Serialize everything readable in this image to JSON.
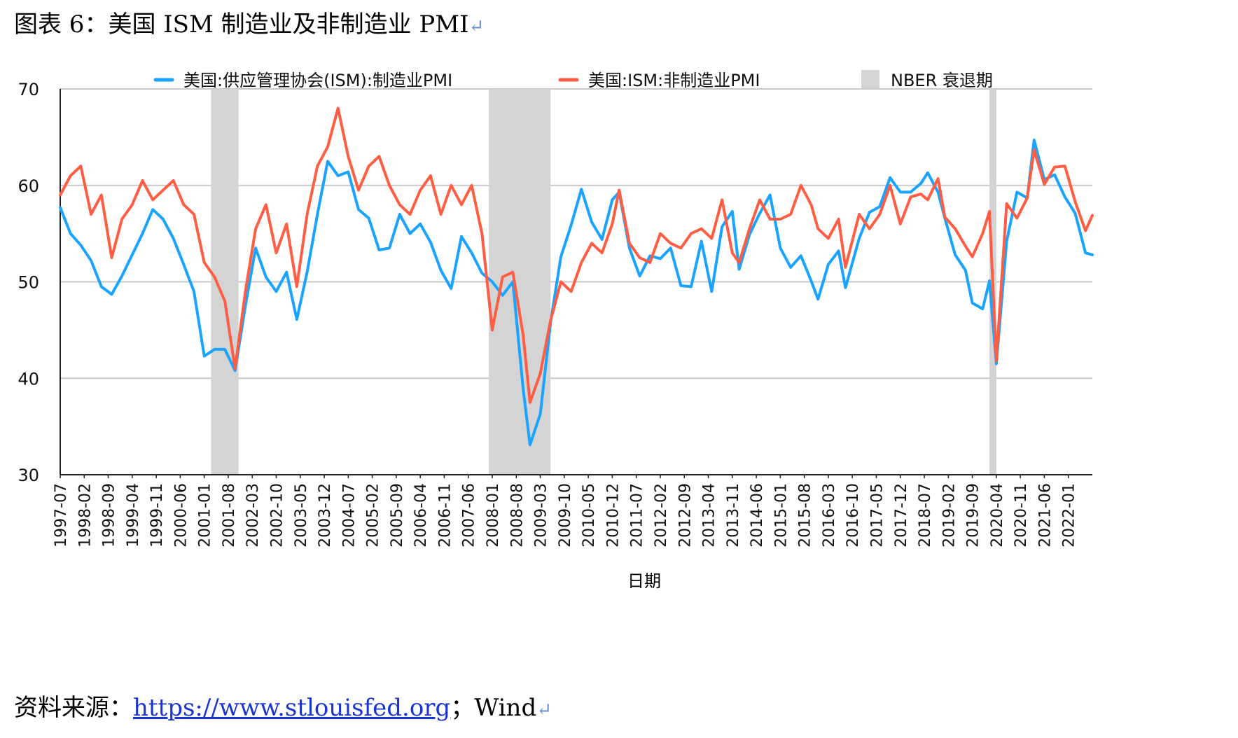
{
  "figure": {
    "title": "图表 6：美国 ISM 制造业及非制造业 PMI",
    "return_mark": "↵"
  },
  "source": {
    "label": "资料来源：",
    "link": "https://www.stlouisfed.org",
    "separator": "；",
    "tail": "Wind"
  },
  "colors": {
    "manufacturing": "#1aa3ff",
    "non_manufacturing": "#ff5e45",
    "recession": "#d4d4d4",
    "grid": "#c8c8c8",
    "axis": "#222222"
  },
  "chart_data": {
    "type": "line",
    "title": "",
    "xlabel": "日期",
    "ylabel": "",
    "ylim": [
      30,
      70
    ],
    "yticks": [
      30,
      40,
      50,
      60,
      70
    ],
    "x_start": "1997-07",
    "x_end": "2022-08",
    "categories": [
      "1997-07",
      "1998-02",
      "1998-09",
      "1999-04",
      "1999-11",
      "2000-06",
      "2001-01",
      "2001-08",
      "2002-03",
      "2002-10",
      "2003-05",
      "2003-12",
      "2004-07",
      "2005-02",
      "2005-09",
      "2006-04",
      "2006-11",
      "2007-06",
      "2008-01",
      "2008-08",
      "2009-03",
      "2009-10",
      "2010-05",
      "2010-12",
      "2011-07",
      "2012-02",
      "2012-09",
      "2013-04",
      "2013-11",
      "2014-06",
      "2015-01",
      "2015-08",
      "2016-03",
      "2016-10",
      "2017-05",
      "2017-12",
      "2018-07",
      "2019-02",
      "2019-09",
      "2020-04",
      "2020-11",
      "2021-06",
      "2022-01"
    ],
    "legend_position": "top",
    "series": [
      {
        "name": "美国:供应管理协会(ISM):制造业PMI",
        "color": "#1aa3ff",
        "points": [
          [
            "1997-07",
            57.7
          ],
          [
            "1997-10",
            55.0
          ],
          [
            "1998-01",
            53.8
          ],
          [
            "1998-04",
            52.2
          ],
          [
            "1998-07",
            49.5
          ],
          [
            "1998-10",
            48.7
          ],
          [
            "1999-01",
            50.6
          ],
          [
            "1999-04",
            52.8
          ],
          [
            "1999-07",
            55.0
          ],
          [
            "1999-10",
            57.5
          ],
          [
            "2000-01",
            56.5
          ],
          [
            "2000-04",
            54.5
          ],
          [
            "2000-07",
            51.8
          ],
          [
            "2000-10",
            49.0
          ],
          [
            "2001-01",
            42.3
          ],
          [
            "2001-04",
            43.0
          ],
          [
            "2001-07",
            43.0
          ],
          [
            "2001-10",
            40.8
          ],
          [
            "2002-01",
            47.5
          ],
          [
            "2002-04",
            53.5
          ],
          [
            "2002-07",
            50.5
          ],
          [
            "2002-10",
            49.0
          ],
          [
            "2003-01",
            51.0
          ],
          [
            "2003-04",
            46.1
          ],
          [
            "2003-07",
            51.0
          ],
          [
            "2003-10",
            57.0
          ],
          [
            "2004-01",
            62.5
          ],
          [
            "2004-04",
            61.0
          ],
          [
            "2004-07",
            61.4
          ],
          [
            "2004-10",
            57.5
          ],
          [
            "2005-01",
            56.6
          ],
          [
            "2005-04",
            53.3
          ],
          [
            "2005-07",
            53.5
          ],
          [
            "2005-10",
            57.0
          ],
          [
            "2006-01",
            55.0
          ],
          [
            "2006-04",
            56.0
          ],
          [
            "2006-07",
            54.1
          ],
          [
            "2006-10",
            51.2
          ],
          [
            "2007-01",
            49.3
          ],
          [
            "2007-04",
            54.7
          ],
          [
            "2007-07",
            53.0
          ],
          [
            "2007-10",
            50.9
          ],
          [
            "2008-01",
            50.0
          ],
          [
            "2008-04",
            48.6
          ],
          [
            "2008-07",
            50.0
          ],
          [
            "2008-10",
            38.9
          ],
          [
            "2008-12",
            33.1
          ],
          [
            "2009-03",
            36.3
          ],
          [
            "2009-06",
            45.8
          ],
          [
            "2009-09",
            52.6
          ],
          [
            "2009-12",
            55.9
          ],
          [
            "2010-03",
            59.6
          ],
          [
            "2010-06",
            56.2
          ],
          [
            "2010-09",
            54.4
          ],
          [
            "2010-12",
            58.5
          ],
          [
            "2011-02",
            59.3
          ],
          [
            "2011-05",
            53.5
          ],
          [
            "2011-08",
            50.6
          ],
          [
            "2011-11",
            52.7
          ],
          [
            "2012-02",
            52.4
          ],
          [
            "2012-05",
            53.5
          ],
          [
            "2012-08",
            49.6
          ],
          [
            "2012-11",
            49.5
          ],
          [
            "2013-02",
            54.2
          ],
          [
            "2013-05",
            49.0
          ],
          [
            "2013-08",
            55.7
          ],
          [
            "2013-11",
            57.3
          ],
          [
            "2014-01",
            51.3
          ],
          [
            "2014-04",
            54.9
          ],
          [
            "2014-07",
            57.1
          ],
          [
            "2014-10",
            59.0
          ],
          [
            "2015-01",
            53.5
          ],
          [
            "2015-04",
            51.5
          ],
          [
            "2015-07",
            52.7
          ],
          [
            "2015-10",
            50.1
          ],
          [
            "2015-12",
            48.2
          ],
          [
            "2016-03",
            51.8
          ],
          [
            "2016-06",
            53.2
          ],
          [
            "2016-08",
            49.4
          ],
          [
            "2016-12",
            54.5
          ],
          [
            "2017-03",
            57.2
          ],
          [
            "2017-06",
            57.8
          ],
          [
            "2017-09",
            60.8
          ],
          [
            "2017-12",
            59.3
          ],
          [
            "2018-03",
            59.3
          ],
          [
            "2018-06",
            60.2
          ],
          [
            "2018-08",
            61.3
          ],
          [
            "2018-11",
            59.3
          ],
          [
            "2019-01",
            56.6
          ],
          [
            "2019-04",
            52.8
          ],
          [
            "2019-07",
            51.2
          ],
          [
            "2019-09",
            47.8
          ],
          [
            "2019-12",
            47.2
          ],
          [
            "2020-02",
            50.1
          ],
          [
            "2020-04",
            41.5
          ],
          [
            "2020-07",
            54.2
          ],
          [
            "2020-10",
            59.3
          ],
          [
            "2021-01",
            58.7
          ],
          [
            "2021-03",
            64.7
          ],
          [
            "2021-06",
            60.6
          ],
          [
            "2021-09",
            61.1
          ],
          [
            "2021-12",
            58.8
          ],
          [
            "2022-03",
            57.1
          ],
          [
            "2022-06",
            53.0
          ],
          [
            "2022-08",
            52.8
          ]
        ]
      },
      {
        "name": "美国:ISM:非制造业PMI",
        "color": "#ff5e45",
        "points": [
          [
            "1997-07",
            59.0
          ],
          [
            "1997-10",
            61.0
          ],
          [
            "1998-01",
            62.0
          ],
          [
            "1998-04",
            57.0
          ],
          [
            "1998-07",
            59.0
          ],
          [
            "1998-10",
            52.5
          ],
          [
            "1999-01",
            56.5
          ],
          [
            "1999-04",
            58.0
          ],
          [
            "1999-07",
            60.5
          ],
          [
            "1999-10",
            58.5
          ],
          [
            "2000-01",
            59.5
          ],
          [
            "2000-04",
            60.5
          ],
          [
            "2000-07",
            58.0
          ],
          [
            "2000-10",
            57.0
          ],
          [
            "2001-01",
            52.0
          ],
          [
            "2001-04",
            50.5
          ],
          [
            "2001-07",
            48.0
          ],
          [
            "2001-10",
            41.0
          ],
          [
            "2002-01",
            49.0
          ],
          [
            "2002-04",
            55.5
          ],
          [
            "2002-07",
            58.0
          ],
          [
            "2002-10",
            53.0
          ],
          [
            "2003-01",
            56.0
          ],
          [
            "2003-04",
            49.5
          ],
          [
            "2003-07",
            57.0
          ],
          [
            "2003-10",
            62.0
          ],
          [
            "2004-01",
            64.0
          ],
          [
            "2004-04",
            68.0
          ],
          [
            "2004-07",
            63.0
          ],
          [
            "2004-10",
            59.5
          ],
          [
            "2005-01",
            62.0
          ],
          [
            "2005-04",
            63.0
          ],
          [
            "2005-07",
            60.0
          ],
          [
            "2005-10",
            58.0
          ],
          [
            "2006-01",
            57.0
          ],
          [
            "2006-04",
            59.5
          ],
          [
            "2006-07",
            61.0
          ],
          [
            "2006-10",
            57.0
          ],
          [
            "2007-01",
            60.0
          ],
          [
            "2007-04",
            58.0
          ],
          [
            "2007-07",
            60.0
          ],
          [
            "2007-10",
            55.0
          ],
          [
            "2008-01",
            45.0
          ],
          [
            "2008-04",
            50.5
          ],
          [
            "2008-07",
            51.0
          ],
          [
            "2008-10",
            44.5
          ],
          [
            "2008-12",
            37.5
          ],
          [
            "2009-03",
            40.5
          ],
          [
            "2009-06",
            46.0
          ],
          [
            "2009-09",
            50.0
          ],
          [
            "2009-12",
            49.0
          ],
          [
            "2010-03",
            52.0
          ],
          [
            "2010-06",
            54.0
          ],
          [
            "2010-09",
            53.0
          ],
          [
            "2010-12",
            56.0
          ],
          [
            "2011-02",
            59.5
          ],
          [
            "2011-05",
            54.0
          ],
          [
            "2011-08",
            52.5
          ],
          [
            "2011-11",
            52.0
          ],
          [
            "2012-02",
            55.0
          ],
          [
            "2012-05",
            54.0
          ],
          [
            "2012-08",
            53.5
          ],
          [
            "2012-11",
            55.0
          ],
          [
            "2013-02",
            55.5
          ],
          [
            "2013-05",
            54.5
          ],
          [
            "2013-08",
            58.5
          ],
          [
            "2013-11",
            53.0
          ],
          [
            "2014-01",
            52.0
          ],
          [
            "2014-04",
            55.5
          ],
          [
            "2014-07",
            58.5
          ],
          [
            "2014-10",
            56.5
          ],
          [
            "2015-01",
            56.5
          ],
          [
            "2015-04",
            57.0
          ],
          [
            "2015-07",
            60.0
          ],
          [
            "2015-10",
            58.0
          ],
          [
            "2015-12",
            55.5
          ],
          [
            "2016-03",
            54.5
          ],
          [
            "2016-06",
            56.5
          ],
          [
            "2016-08",
            51.5
          ],
          [
            "2016-12",
            57.0
          ],
          [
            "2017-03",
            55.5
          ],
          [
            "2017-06",
            57.0
          ],
          [
            "2017-09",
            60.0
          ],
          [
            "2017-12",
            56.0
          ],
          [
            "2018-03",
            58.8
          ],
          [
            "2018-06",
            59.1
          ],
          [
            "2018-08",
            58.5
          ],
          [
            "2018-11",
            60.7
          ],
          [
            "2019-01",
            56.7
          ],
          [
            "2019-04",
            55.5
          ],
          [
            "2019-07",
            53.7
          ],
          [
            "2019-09",
            52.6
          ],
          [
            "2019-12",
            55.0
          ],
          [
            "2020-02",
            57.3
          ],
          [
            "2020-04",
            41.8
          ],
          [
            "2020-07",
            58.1
          ],
          [
            "2020-10",
            56.6
          ],
          [
            "2021-01",
            58.7
          ],
          [
            "2021-03",
            63.7
          ],
          [
            "2021-06",
            60.1
          ],
          [
            "2021-09",
            61.9
          ],
          [
            "2021-12",
            62.0
          ],
          [
            "2022-03",
            58.3
          ],
          [
            "2022-06",
            55.3
          ],
          [
            "2022-08",
            56.9
          ]
        ]
      }
    ],
    "recession_bands": [
      {
        "label": "NBER 衰退期",
        "start": "2001-03",
        "end": "2001-11"
      },
      {
        "label": "NBER 衰退期",
        "start": "2007-12",
        "end": "2009-06"
      },
      {
        "label": "NBER 衰退期",
        "start": "2020-02",
        "end": "2020-04"
      }
    ],
    "legend": [
      {
        "label": "美国:供应管理协会(ISM):制造业PMI",
        "kind": "line",
        "color": "#1aa3ff"
      },
      {
        "label": "美国:ISM:非制造业PMI",
        "kind": "line",
        "color": "#ff5e45"
      },
      {
        "label": "NBER 衰退期",
        "kind": "box",
        "color": "#d4d4d4"
      }
    ]
  }
}
